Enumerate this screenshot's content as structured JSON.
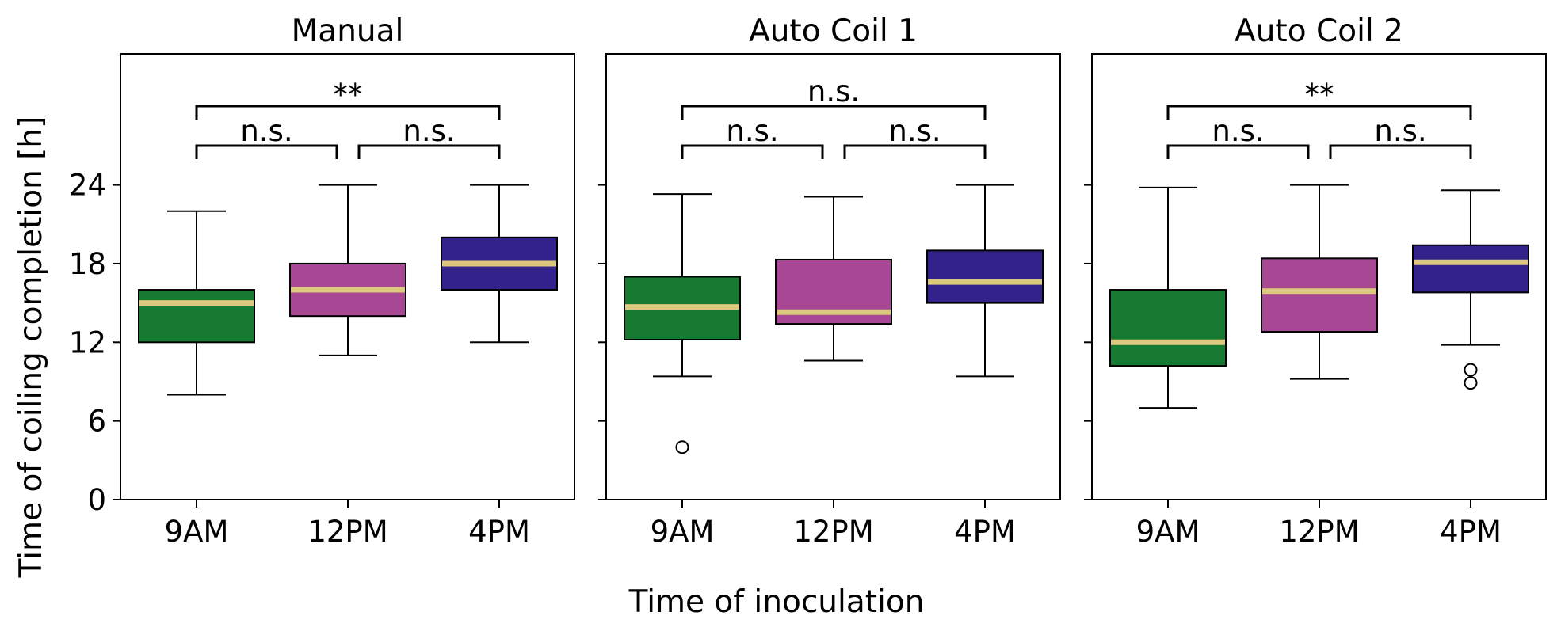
{
  "chart_data": {
    "type": "box",
    "xlabel": "Time of inoculation",
    "ylabel": "Time of coiling completion [h]",
    "yticks": [
      0,
      6,
      12,
      18,
      24
    ],
    "ylim": [
      0,
      34
    ],
    "categories": [
      "9AM",
      "12PM",
      "4PM"
    ],
    "category_colors": [
      "#167a32",
      "#a84894",
      "#33228a"
    ],
    "median_color": "#dcc87e",
    "panels": [
      {
        "title": "Manual",
        "boxes": [
          {
            "category": "9AM",
            "whisker_low": 8,
            "q1": 12,
            "median": 15,
            "q3": 16,
            "whisker_high": 22,
            "outliers": []
          },
          {
            "category": "12PM",
            "whisker_low": 11,
            "q1": 14,
            "median": 16,
            "q3": 18,
            "whisker_high": 24,
            "outliers": []
          },
          {
            "category": "4PM",
            "whisker_low": 12,
            "q1": 16,
            "median": 18,
            "q3": 20,
            "whisker_high": 24,
            "outliers": []
          }
        ],
        "comparisons": [
          {
            "from": "9AM",
            "to": "12PM",
            "label": "n.s."
          },
          {
            "from": "12PM",
            "to": "4PM",
            "label": "n.s."
          },
          {
            "from": "9AM",
            "to": "4PM",
            "label": "**"
          }
        ]
      },
      {
        "title": "Auto Coil 1",
        "boxes": [
          {
            "category": "9AM",
            "whisker_low": 9.4,
            "q1": 12.2,
            "median": 14.7,
            "q3": 17.0,
            "whisker_high": 23.3,
            "outliers": [
              4.0
            ]
          },
          {
            "category": "12PM",
            "whisker_low": 10.6,
            "q1": 13.4,
            "median": 14.3,
            "q3": 18.3,
            "whisker_high": 23.1,
            "outliers": []
          },
          {
            "category": "4PM",
            "whisker_low": 9.4,
            "q1": 15.0,
            "median": 16.6,
            "q3": 19.0,
            "whisker_high": 24.0,
            "outliers": []
          }
        ],
        "comparisons": [
          {
            "from": "9AM",
            "to": "12PM",
            "label": "n.s."
          },
          {
            "from": "12PM",
            "to": "4PM",
            "label": "n.s."
          },
          {
            "from": "9AM",
            "to": "4PM",
            "label": "n.s."
          }
        ]
      },
      {
        "title": "Auto Coil 2",
        "boxes": [
          {
            "category": "9AM",
            "whisker_low": 7.0,
            "q1": 10.2,
            "median": 12.0,
            "q3": 16.0,
            "whisker_high": 23.8,
            "outliers": []
          },
          {
            "category": "12PM",
            "whisker_low": 9.2,
            "q1": 12.8,
            "median": 15.9,
            "q3": 18.4,
            "whisker_high": 24.0,
            "outliers": []
          },
          {
            "category": "4PM",
            "whisker_low": 11.8,
            "q1": 15.8,
            "median": 18.1,
            "q3": 19.4,
            "whisker_high": 23.6,
            "outliers": [
              9.9,
              8.9
            ]
          }
        ],
        "comparisons": [
          {
            "from": "9AM",
            "to": "12PM",
            "label": "n.s."
          },
          {
            "from": "12PM",
            "to": "4PM",
            "label": "n.s."
          },
          {
            "from": "9AM",
            "to": "4PM",
            "label": "**"
          }
        ]
      }
    ]
  }
}
